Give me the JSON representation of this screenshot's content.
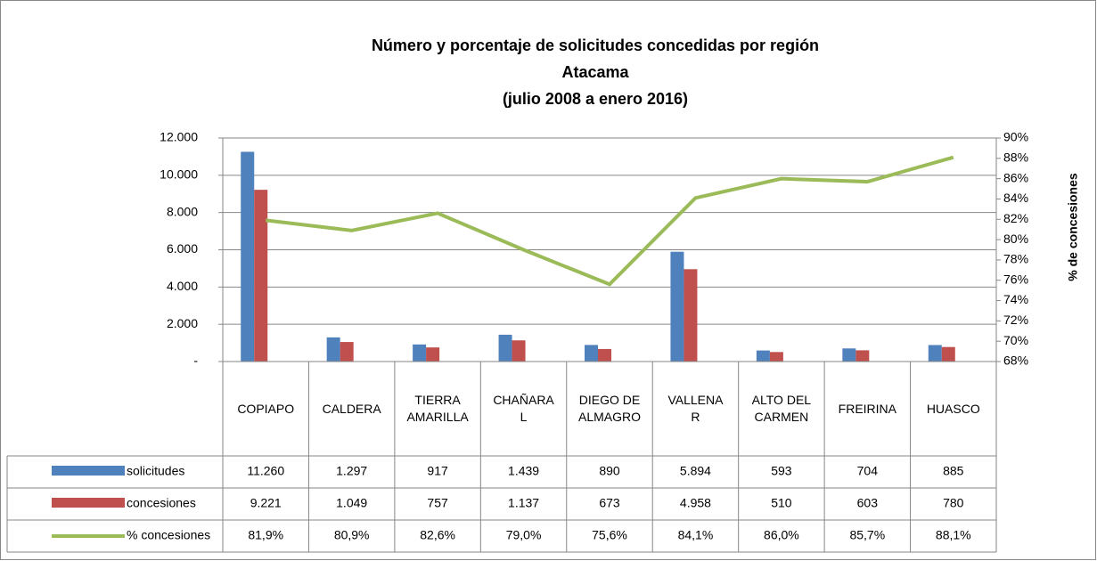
{
  "chart_data": {
    "type": "bar",
    "title": [
      "Número y porcentaje de solicitudes concedidas por región",
      "Atacama",
      "(julio 2008 a enero 2016)"
    ],
    "y2_label": "% de concesiones",
    "categories": [
      "COPIAPO",
      "CALDERA",
      "TIERRA AMARILLA",
      "CHAÑARAL",
      "DIEGO DE ALMAGRO",
      "VALLENAR",
      "ALTO DEL CARMEN",
      "FREIRINA",
      "HUASCO"
    ],
    "series": [
      {
        "name": "solicitudes",
        "color": "#4f81bd",
        "type": "bar",
        "values": [
          11260,
          1297,
          917,
          1439,
          890,
          5894,
          593,
          704,
          885
        ],
        "value_labels": [
          "11.260",
          "1.297",
          "917",
          "1.439",
          "890",
          "5.894",
          "593",
          "704",
          "885"
        ]
      },
      {
        "name": "concesiones",
        "color": "#c0504d",
        "type": "bar",
        "values": [
          9221,
          1049,
          757,
          1137,
          673,
          4958,
          510,
          603,
          780
        ],
        "value_labels": [
          "9.221",
          "1.049",
          "757",
          "1.137",
          "673",
          "4.958",
          "510",
          "603",
          "780"
        ]
      },
      {
        "name": "% concesiones",
        "color": "#9bbb59",
        "type": "line",
        "axis": "y2",
        "values": [
          81.9,
          80.9,
          82.6,
          79.0,
          75.6,
          84.1,
          86.0,
          85.7,
          88.1
        ],
        "value_labels": [
          "81,9%",
          "80,9%",
          "82,6%",
          "79,0%",
          "75,6%",
          "84,1%",
          "86,0%",
          "85,7%",
          "88,1%"
        ]
      }
    ],
    "ylim": [
      0,
      12000
    ],
    "yticks": [
      {
        "value": 0,
        "label": "-"
      },
      {
        "value": 2000,
        "label": "2.000"
      },
      {
        "value": 4000,
        "label": "4.000"
      },
      {
        "value": 6000,
        "label": "6.000"
      },
      {
        "value": 8000,
        "label": "8.000"
      },
      {
        "value": 10000,
        "label": "10.000"
      },
      {
        "value": 12000,
        "label": "12.000"
      }
    ],
    "y2lim": [
      68,
      90
    ],
    "y2ticks": [
      {
        "value": 68,
        "label": "68%"
      },
      {
        "value": 70,
        "label": "70%"
      },
      {
        "value": 72,
        "label": "72%"
      },
      {
        "value": 74,
        "label": "74%"
      },
      {
        "value": 76,
        "label": "76%"
      },
      {
        "value": 78,
        "label": "78%"
      },
      {
        "value": 80,
        "label": "80%"
      },
      {
        "value": 82,
        "label": "82%"
      },
      {
        "value": 84,
        "label": "84%"
      },
      {
        "value": 86,
        "label": "86%"
      },
      {
        "value": 88,
        "label": "88%"
      },
      {
        "value": 90,
        "label": "90%"
      }
    ],
    "grid": true
  }
}
